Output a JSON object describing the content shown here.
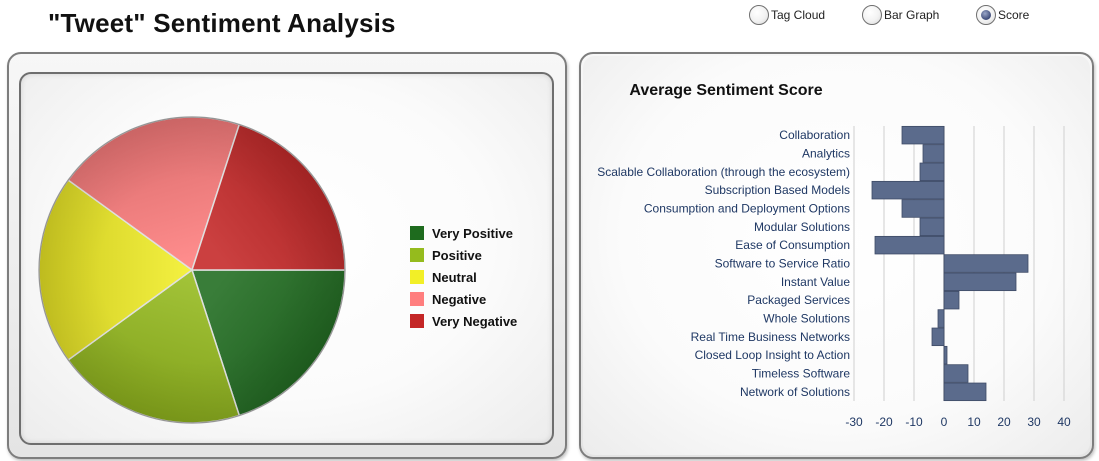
{
  "page": {
    "title": "\"Tweet\" Sentiment Analysis"
  },
  "view_options": [
    {
      "label": "Tag Cloud",
      "selected": false
    },
    {
      "label": "Bar Graph",
      "selected": false
    },
    {
      "label": "Score",
      "selected": true
    }
  ],
  "chart_data": [
    {
      "type": "pie",
      "title": "",
      "legend_position": "right",
      "categories": [
        "Very Positive",
        "Positive",
        "Neutral",
        "Negative",
        "Very Negative"
      ],
      "values": [
        20,
        20,
        20,
        20,
        20
      ],
      "colors": [
        "#1e6b1e",
        "#95bb1d",
        "#f2ef27",
        "#ff7e7e",
        "#c42626"
      ]
    },
    {
      "type": "bar",
      "orientation": "horizontal",
      "title": "Average Sentiment Score",
      "categories": [
        "Collaboration",
        "Analytics",
        "Scalable Collaboration (through the ecosystem)",
        "Subscription Based Models",
        "Consumption and Deployment Options",
        "Modular Solutions",
        "Ease of Consumption",
        "Software to Service Ratio",
        "Instant Value",
        "Packaged Services",
        "Whole Solutions",
        "Real Time Business Networks",
        "Closed Loop Insight to Action",
        "Timeless Software",
        "Network of Solutions"
      ],
      "values": [
        -14,
        -7,
        -8,
        -24,
        -14,
        -8,
        -23,
        28,
        24,
        5,
        -2,
        -4,
        1,
        8,
        14
      ],
      "xlim": [
        -30,
        40
      ],
      "xticks": [
        "-30",
        "-20",
        "-10",
        "0",
        "10",
        "20",
        "30",
        "40"
      ],
      "grid": true,
      "bar_color": "#5b6b8c"
    }
  ]
}
